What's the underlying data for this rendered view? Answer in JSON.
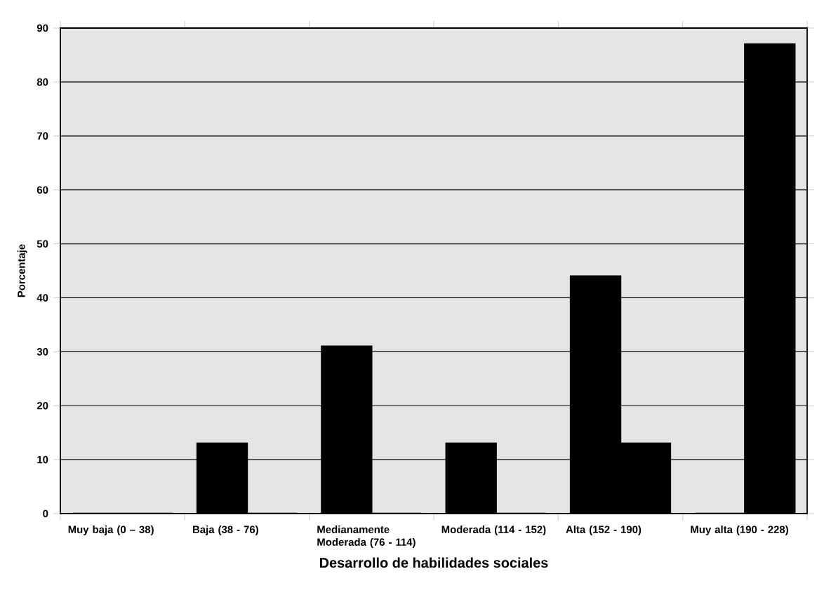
{
  "chart_data": {
    "type": "bar",
    "xlabel": "Desarrollo de habilidades sociales",
    "ylabel": "Porcentaje",
    "categories": [
      "Muy baja (0 – 38)",
      "Baja (38 - 76)",
      "Medianamente Moderada (76 - 114)",
      "Moderada (114 - 152)",
      "Alta (152 - 190)",
      "Muy alta (190 - 228)"
    ],
    "series": [
      {
        "color": "#000000",
        "values": [
          0,
          13,
          31,
          13,
          44,
          0
        ]
      },
      {
        "color": "#000000",
        "values": [
          0,
          0,
          0,
          0,
          13,
          87
        ]
      }
    ],
    "ylim": [
      0,
      90
    ],
    "yticks": [
      0,
      10,
      20,
      30,
      40,
      50,
      60,
      70,
      80,
      90
    ],
    "grid": "y"
  }
}
